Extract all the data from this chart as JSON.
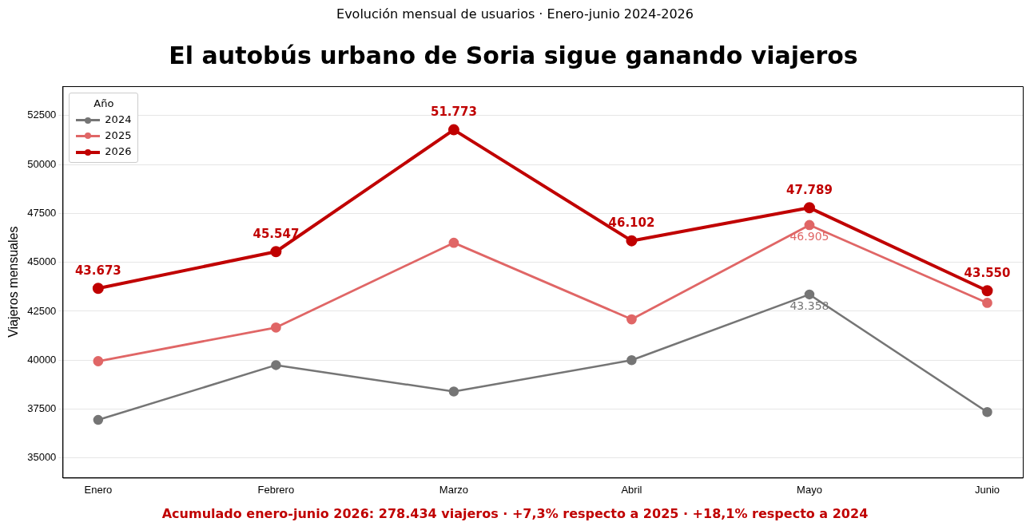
{
  "chart_data": {
    "type": "line",
    "subtitle": "Evolución mensual de usuarios · Enero-junio 2024-2026",
    "title": "El autobús urbano de Soria sigue ganando viajeros",
    "ylabel": "Viajeros mensuales",
    "legend_title": "Año",
    "categories": [
      "Enero",
      "Febrero",
      "Marzo",
      "Abril",
      "Mayo",
      "Junio"
    ],
    "series": [
      {
        "name": "2024",
        "color": "#757575",
        "values": [
          36950,
          39750,
          38400,
          40000,
          43358,
          37350
        ],
        "value_labels": [
          null,
          null,
          null,
          null,
          "43.358",
          null
        ]
      },
      {
        "name": "2025",
        "color": "#e06666",
        "values": [
          39950,
          41670,
          46000,
          42090,
          46905,
          42930
        ],
        "value_labels": [
          null,
          null,
          null,
          null,
          "46.905",
          null
        ]
      },
      {
        "name": "2026",
        "color": "#c00000",
        "values": [
          43673,
          45547,
          51773,
          46102,
          47789,
          43550
        ],
        "value_labels": [
          "43.673",
          "45.547",
          "51.773",
          "46.102",
          "47.789",
          "43.550"
        ]
      }
    ],
    "ylim": [
      34000,
      54000
    ],
    "yticks": [
      35000,
      37500,
      40000,
      42500,
      45000,
      47500,
      50000,
      52500
    ],
    "grid": "y",
    "legend": "top left",
    "marker": "circle",
    "line_style": "solid",
    "annotations": [
      "Acumulado enero-junio 2026: 278.434 viajeros · +7,3% respecto a 2025 · +18,1% respecto a 2024"
    ]
  }
}
